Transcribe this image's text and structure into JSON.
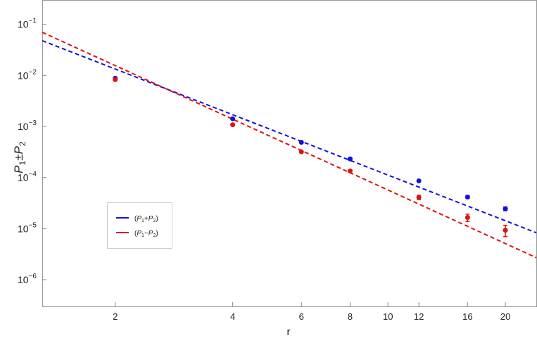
{
  "chart_data": {
    "type": "scatter",
    "title": "",
    "xlabel": "r",
    "ylabel_main": "P",
    "ylabel_sub1": "1",
    "ylabel_op": "±",
    "ylabel_sub2": "2",
    "x_scale": "log",
    "y_scale": "log",
    "xlim": [
      1.3,
      24
    ],
    "ylim": [
      3e-07,
      0.3
    ],
    "x_ticks": [
      2,
      4,
      6,
      8,
      10,
      12,
      16,
      20
    ],
    "x_tick_labels": [
      "2",
      "4",
      "6",
      "8",
      "10",
      "12",
      "16",
      "20"
    ],
    "y_ticks": [
      1e-06,
      1e-05,
      0.0001,
      0.001,
      0.01,
      0.1
    ],
    "y_tick_labels": [
      {
        "base": "10",
        "exp": "−6"
      },
      {
        "base": "10",
        "exp": "−5"
      },
      {
        "base": "10",
        "exp": "−4"
      },
      {
        "base": "10",
        "exp": "−3"
      },
      {
        "base": "10",
        "exp": "−2"
      },
      {
        "base": "10",
        "exp": "−1"
      }
    ],
    "grid": false,
    "legend_position": "bottom-left",
    "series": [
      {
        "name_open": "(",
        "name_p1": "P",
        "name_s1": "1",
        "name_op": "+",
        "name_p2": "P",
        "name_s2": "2",
        "name_close": ")",
        "color": "#1010e0",
        "x": [
          2,
          4,
          6,
          8,
          12,
          16,
          20
        ],
        "y": [
          0.0088,
          0.00142,
          0.00049,
          0.000232,
          8.6e-05,
          4.15e-05,
          2.45e-05
        ],
        "yerr": [
          0,
          0,
          0,
          0,
          3e-06,
          2.5e-06,
          2e-06
        ],
        "fit_line": {
          "x": [
            1.3,
            24
          ],
          "y": [
            0.048,
            8.3e-06
          ]
        }
      },
      {
        "name_open": "(",
        "name_p1": "P",
        "name_s1": "1",
        "name_op": "−",
        "name_p2": "P",
        "name_s2": "2",
        "name_close": ")",
        "color": "#e01010",
        "x": [
          2,
          4,
          6,
          8,
          12,
          16,
          20
        ],
        "y": [
          0.0083,
          0.00108,
          0.00032,
          0.000135,
          4.1e-05,
          1.65e-05,
          9.3e-06
        ],
        "yerr": [
          0,
          0,
          0,
          7e-06,
          4e-06,
          2.7e-06,
          2.3e-06
        ],
        "fit_line": {
          "x": [
            1.3,
            24
          ],
          "y": [
            0.07,
            2.7e-06
          ]
        }
      }
    ]
  }
}
